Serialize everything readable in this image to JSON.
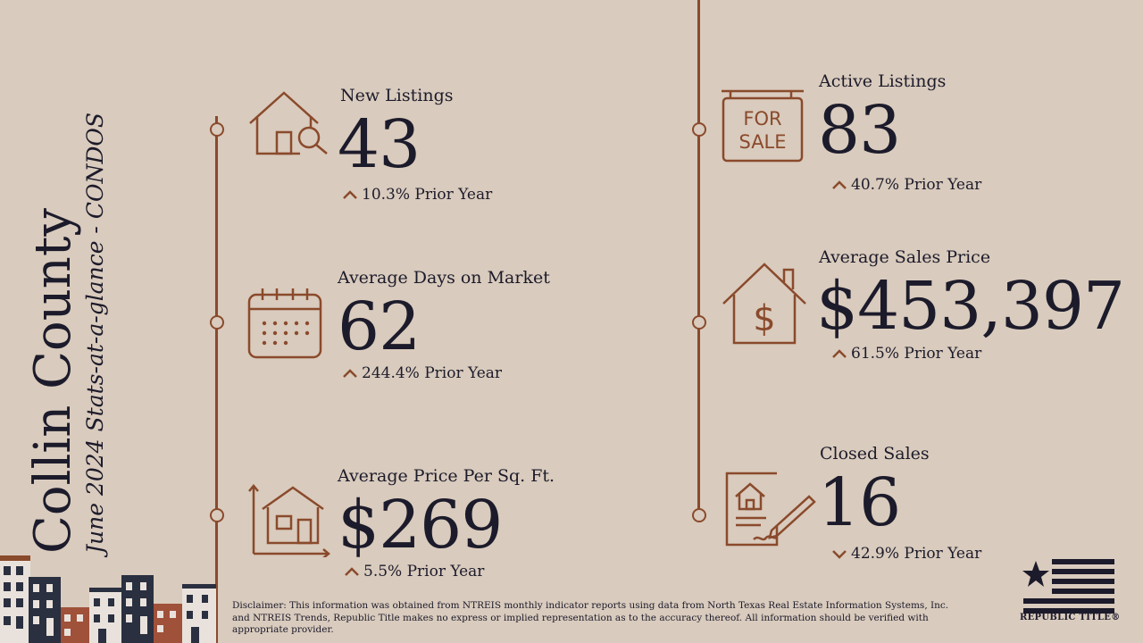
{
  "title": {
    "county": "Collin County",
    "subtitle": "June 2024 Stats-at-a-glance - CONDOS"
  },
  "stats": {
    "new_listings": {
      "label": "New Listings",
      "value": "43",
      "change": "10.3% Prior Year",
      "direction": "up"
    },
    "days_on_market": {
      "label": "Average Days on Market",
      "value": "62",
      "change": "244.4% Prior Year",
      "direction": "up"
    },
    "price_per_sqft": {
      "label": "Average Price Per Sq. Ft.",
      "value": "$269",
      "change": "5.5% Prior Year",
      "direction": "up"
    },
    "active_listings": {
      "label": "Active Listings",
      "value": "83",
      "change": "40.7% Prior Year",
      "direction": "up"
    },
    "avg_sales_price": {
      "label": "Average Sales Price",
      "value": "$453,397",
      "change": "61.5% Prior Year",
      "direction": "up"
    },
    "closed_sales": {
      "label": "Closed Sales",
      "value": "16",
      "change": "42.9% Prior Year",
      "direction": "down"
    }
  },
  "icons": {
    "new_listings": "house-search-icon",
    "days_on_market": "calendar-icon",
    "price_per_sqft": "house-measure-icon",
    "active_listings": "for-sale-sign-icon",
    "avg_sales_price": "house-dollar-icon",
    "closed_sales": "signed-contract-icon"
  },
  "for_sale_sign": {
    "line1": "FOR",
    "line2": "SALE"
  },
  "disclaimer": "Disclaimer: This information was obtained from NTREIS monthly indicator reports using data from North Texas Real Estate Information Systems, Inc. and NTREIS Trends, Republic Title makes no express or implied representation as to the accuracy thereof. All information should be verified with appropriate provider.",
  "logo": {
    "text": "REPUBLIC TITLE®"
  },
  "colors": {
    "background": "#d9cbbd",
    "accent": "#8a4a2c",
    "text": "#1c1b2b"
  }
}
